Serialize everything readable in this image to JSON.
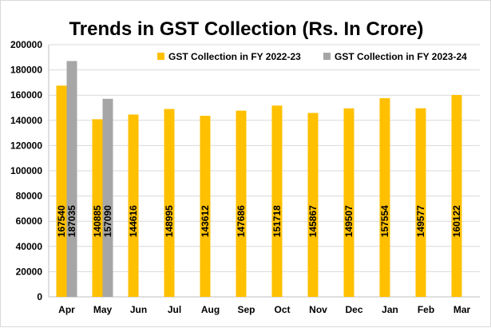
{
  "chart_data": {
    "type": "bar",
    "title": "Trends in GST Collection (Rs. In Crore)",
    "xlabel": "",
    "ylabel": "",
    "categories": [
      "Apr",
      "May",
      "Jun",
      "Jul",
      "Aug",
      "Sep",
      "Oct",
      "Nov",
      "Dec",
      "Jan",
      "Feb",
      "Mar"
    ],
    "series": [
      {
        "name": "GST Collection in FY 2022-23",
        "color": "#ffc000",
        "values": [
          167540,
          140885,
          144616,
          148995,
          143612,
          147686,
          151718,
          145867,
          149507,
          157554,
          149577,
          160122
        ]
      },
      {
        "name": "GST Collection in FY 2023-24",
        "color": "#a6a6a6",
        "values": [
          187035,
          157090,
          null,
          null,
          null,
          null,
          null,
          null,
          null,
          null,
          null,
          null
        ]
      }
    ],
    "ylim": [
      0,
      200000
    ],
    "yticks": [
      0,
      20000,
      40000,
      60000,
      80000,
      100000,
      120000,
      140000,
      160000,
      180000,
      200000
    ],
    "grid": true,
    "legend_position": "top-right",
    "data_labels": true
  }
}
